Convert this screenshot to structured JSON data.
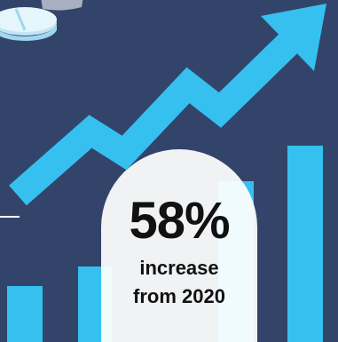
{
  "colors": {
    "background": "#33446b",
    "accent": "#35c0f0",
    "text": "#111111",
    "label_bg": "#ffffff"
  },
  "icons": {
    "top_left": "pie-chart-coins-icon",
    "arrow": "trend-up-arrow-icon"
  },
  "stat": {
    "value": "58%",
    "caption_line1": "increase",
    "caption_line2": "from 2020"
  }
}
